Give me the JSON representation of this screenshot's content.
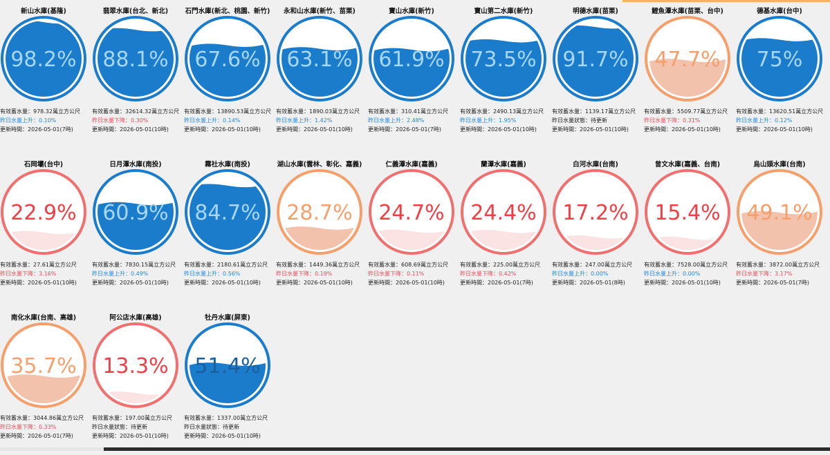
{
  "labels": {
    "storage_prefix": "有效蓄水量：",
    "storage_unit": "萬立方公尺",
    "up_prefix": "昨日水量上升：",
    "down_prefix": "昨日水量下降：",
    "pending_text": "昨日水量狀態：待更新",
    "updated_prefix": "更新時間：",
    "percent_suffix": "%"
  },
  "colors": {
    "blue_ring": "#1a7ccb",
    "blue_fill": "#1a7ccb",
    "blue_text": "#a8d6f5",
    "blue_text_dark": "#1a5f9c",
    "orange_ring": "#f5a06c",
    "orange_fill": "#f2c2ad",
    "orange_text": "#f5a06c",
    "red_ring": "#f07070",
    "red_fill": "#fbe3e3",
    "red_text": "#ef3e45"
  },
  "reservoirs": [
    {
      "name": "新山水庫(基隆)",
      "percent": "98.2",
      "level": 0.982,
      "status": "blue",
      "storage": "978.32",
      "change_type": "up",
      "change": "0.10%",
      "updated": "2026-05-01(7時)"
    },
    {
      "name": "翡翠水庫(台北、新北)",
      "percent": "88.1",
      "level": 0.881,
      "status": "blue",
      "storage": "32614.32",
      "change_type": "down",
      "change": "0.30%",
      "updated": "2026-05-01(10時)"
    },
    {
      "name": "石門水庫(新北、桃園、新竹)",
      "percent": "67.6",
      "level": 0.676,
      "status": "blue",
      "storage": "13890.53",
      "change_type": "up",
      "change": "0.14%",
      "updated": "2026-05-01(10時)"
    },
    {
      "name": "永和山水庫(新竹、苗栗)",
      "percent": "63.1",
      "level": 0.631,
      "status": "blue",
      "storage": "1890.03",
      "change_type": "up",
      "change": "1.42%",
      "updated": "2026-05-01(10時)"
    },
    {
      "name": "寶山水庫(新竹)",
      "percent": "61.9",
      "level": 0.619,
      "status": "blue",
      "storage": "310.41",
      "change_type": "up",
      "change": "2.48%",
      "updated": "2026-05-01(7時)"
    },
    {
      "name": "寶山第二水庫(新竹)",
      "percent": "73.5",
      "level": 0.735,
      "status": "blue",
      "storage": "2490.13",
      "change_type": "up",
      "change": "1.95%",
      "updated": "2026-05-01(10時)"
    },
    {
      "name": "明德水庫(苗栗)",
      "percent": "91.7",
      "level": 0.917,
      "status": "blue",
      "storage": "1139.17",
      "change_type": "none",
      "change": "",
      "updated": "2026-05-01(10時)"
    },
    {
      "name": "鯉魚潭水庫(苗栗、台中)",
      "percent": "47.7",
      "level": 0.477,
      "status": "orange",
      "storage": "5509.77",
      "change_type": "down",
      "change": "0.31%",
      "updated": "2026-05-01(10時)"
    },
    {
      "name": "德基水庫(台中)",
      "percent": "75",
      "level": 0.75,
      "status": "blue",
      "storage": "13620.51",
      "change_type": "up",
      "change": "0.12%",
      "updated": "2026-05-01(10時)"
    },
    {
      "name": "石岡壩(台中)",
      "percent": "22.9",
      "level": 0.229,
      "status": "red",
      "storage": "27.61",
      "change_type": "down",
      "change": "3.16%",
      "updated": "2026-05-01(10時)"
    },
    {
      "name": "日月潭水庫(南投)",
      "percent": "60.9",
      "level": 0.609,
      "status": "blue",
      "storage": "7830.15",
      "change_type": "up",
      "change": "0.49%",
      "updated": "2026-05-01(10時)"
    },
    {
      "name": "霧社水庫(南投)",
      "percent": "84.7",
      "level": 0.847,
      "status": "blue",
      "storage": "2180.61",
      "change_type": "up",
      "change": "0.56%",
      "updated": "2026-05-01(10時)"
    },
    {
      "name": "湖山水庫(雲林、彰化、嘉義)",
      "percent": "28.7",
      "level": 0.287,
      "status": "orange",
      "storage": "1449.36",
      "change_type": "down",
      "change": "0.19%",
      "updated": "2026-05-01(10時)"
    },
    {
      "name": "仁義潭水庫(嘉義)",
      "percent": "24.7",
      "level": 0.247,
      "status": "red",
      "storage": "608.69",
      "change_type": "down",
      "change": "0.11%",
      "updated": "2026-05-01(10時)"
    },
    {
      "name": "蘭潭水庫(嘉義)",
      "percent": "24.4",
      "level": 0.244,
      "status": "red",
      "storage": "225.00",
      "change_type": "down",
      "change": "0.42%",
      "updated": "2026-05-01(7時)"
    },
    {
      "name": "白河水庫(台南)",
      "percent": "17.2",
      "level": 0.172,
      "status": "red",
      "storage": "247.00",
      "change_type": "up",
      "change": "0.00%",
      "updated": "2026-05-01(8時)"
    },
    {
      "name": "曾文水庫(嘉義、台南)",
      "percent": "15.4",
      "level": 0.154,
      "status": "red",
      "storage": "7528.00",
      "change_type": "up",
      "change": "0.00%",
      "updated": "2026-05-01(10時)"
    },
    {
      "name": "烏山頭水庫(台南)",
      "percent": "49.1",
      "level": 0.491,
      "status": "orange",
      "storage": "3872.00",
      "change_type": "down",
      "change": "3.17%",
      "updated": "2026-05-01(7時)"
    },
    {
      "name": "南化水庫(台南、高雄)",
      "percent": "35.7",
      "level": 0.357,
      "status": "orange",
      "storage": "3044.86",
      "change_type": "down",
      "change": "0.33%",
      "updated": "2026-05-01(7時)"
    },
    {
      "name": "阿公店水庫(高雄)",
      "percent": "13.3",
      "level": 0.133,
      "status": "red",
      "storage": "197.00",
      "change_type": "none",
      "change": "",
      "updated": "2026-05-01(10時)"
    },
    {
      "name": "牡丹水庫(屏東)",
      "percent": "51.4",
      "level": 0.514,
      "status": "blue",
      "storage": "1337.00",
      "change_type": "none",
      "change": "",
      "updated": "2026-05-01(10時)"
    }
  ]
}
